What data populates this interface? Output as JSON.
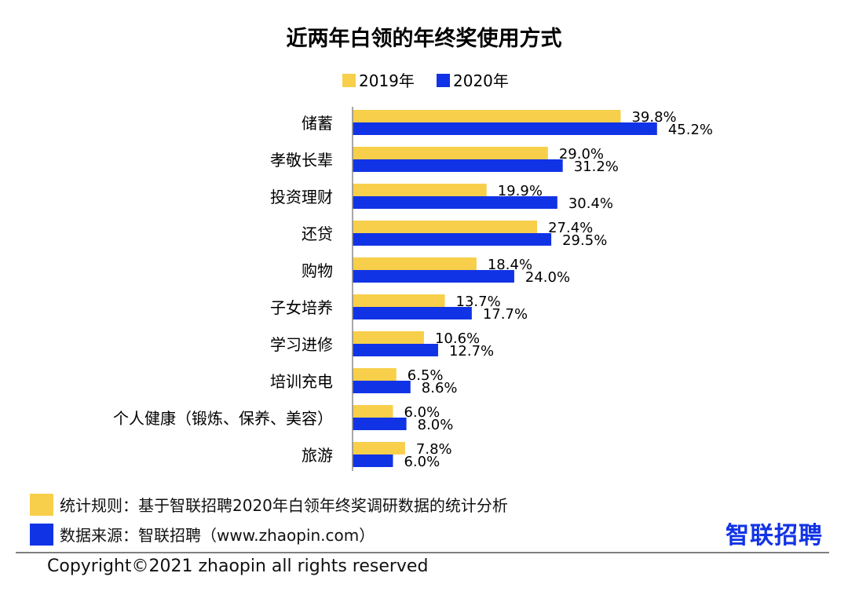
{
  "chart_data": {
    "type": "bar",
    "orientation": "horizontal",
    "title": "近两年白领的年终奖使用方式",
    "categories": [
      "储蓄",
      "孝敬长辈",
      "投资理财",
      "还贷",
      "购物",
      "子女培养",
      "学习进修",
      "培训充电",
      "个人健康（锻炼、保养、美容）",
      "旅游"
    ],
    "series": [
      {
        "name": "2019年",
        "color": "#F7CF4A",
        "values": [
          39.8,
          29.0,
          19.9,
          27.4,
          18.4,
          13.7,
          10.6,
          6.5,
          6.0,
          7.8
        ],
        "labels": [
          "39.8%",
          "29.0%",
          "19.9%",
          "27.4%",
          "18.4%",
          "13.7%",
          "10.6%",
          "6.5%",
          "6.0%",
          "7.8%"
        ]
      },
      {
        "name": "2020年",
        "color": "#1133E6",
        "values": [
          45.2,
          31.2,
          30.4,
          29.5,
          24.0,
          17.7,
          12.7,
          8.6,
          8.0,
          6.0
        ],
        "labels": [
          "45.2%",
          "31.2%",
          "30.4%",
          "29.5%",
          "24.0%",
          "17.7%",
          "12.7%",
          "8.6%",
          "8.0%",
          "6.0%"
        ]
      }
    ],
    "xlim": [
      0,
      50
    ],
    "grid": false,
    "legend_position": "top-center"
  },
  "footnotes": {
    "rule_color": "#F7CF4A",
    "rule_text": "统计规则：基于智联招聘2020年白领年终奖调研数据的统计分析",
    "source_color": "#1133E6",
    "source_text": "数据来源：智联招聘（www.zhaopin.com）"
  },
  "brand": {
    "logo_text": "智联招聘",
    "logo_color": "#1133E6"
  },
  "copyright": "Copyright©2021 zhaopin all rights reserved"
}
